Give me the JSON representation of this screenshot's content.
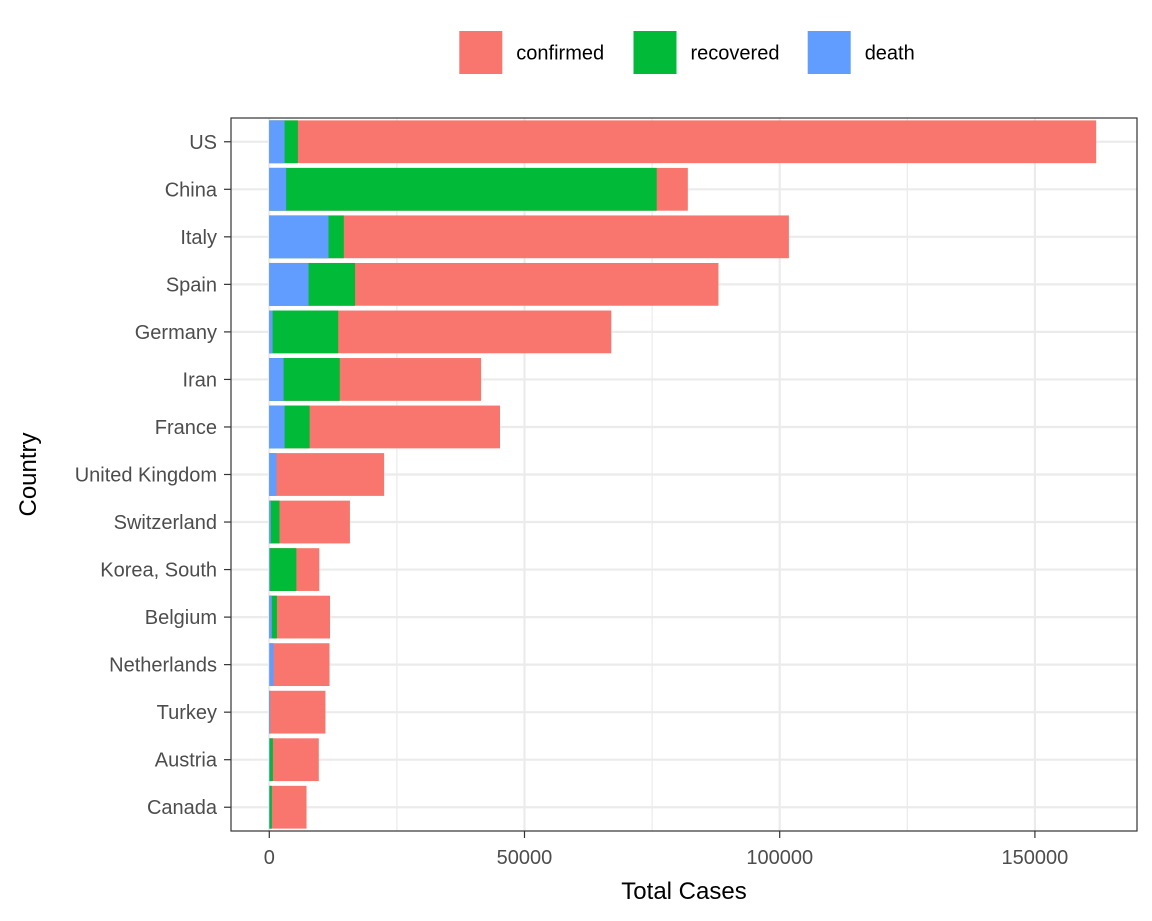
{
  "chart_data": {
    "type": "bar",
    "orientation": "horizontal",
    "stacked": true,
    "xlabel": "Total Cases",
    "ylabel": "Country",
    "xlim": [
      -7500,
      170000
    ],
    "xticks": [
      0,
      50000,
      100000,
      150000
    ],
    "xtick_labels": [
      "0",
      "50000",
      "100000",
      "150000"
    ],
    "grid": true,
    "legend_position": "top",
    "categories": [
      "US",
      "China",
      "Italy",
      "Spain",
      "Germany",
      "Iran",
      "France",
      "United Kingdom",
      "Switzerland",
      "Korea, South",
      "Belgium",
      "Netherlands",
      "Turkey",
      "Austria",
      "Canada"
    ],
    "series": [
      {
        "name": "confirmed",
        "color": "#F8766D",
        "values": [
          162000,
          82000,
          101800,
          88000,
          67000,
          41500,
          45200,
          22500,
          15800,
          9800,
          11900,
          11800,
          11000,
          9700,
          7300
        ]
      },
      {
        "name": "recovered",
        "color": "#00BA38",
        "values": [
          5600,
          75900,
          14600,
          16800,
          13500,
          13800,
          7900,
          200,
          2000,
          5300,
          1500,
          0,
          100,
          700,
          500
        ]
      },
      {
        "name": "death",
        "color": "#619CFF",
        "values": [
          3000,
          3300,
          11600,
          7700,
          650,
          2800,
          3000,
          1400,
          300,
          160,
          500,
          860,
          170,
          110,
          100
        ]
      }
    ]
  }
}
